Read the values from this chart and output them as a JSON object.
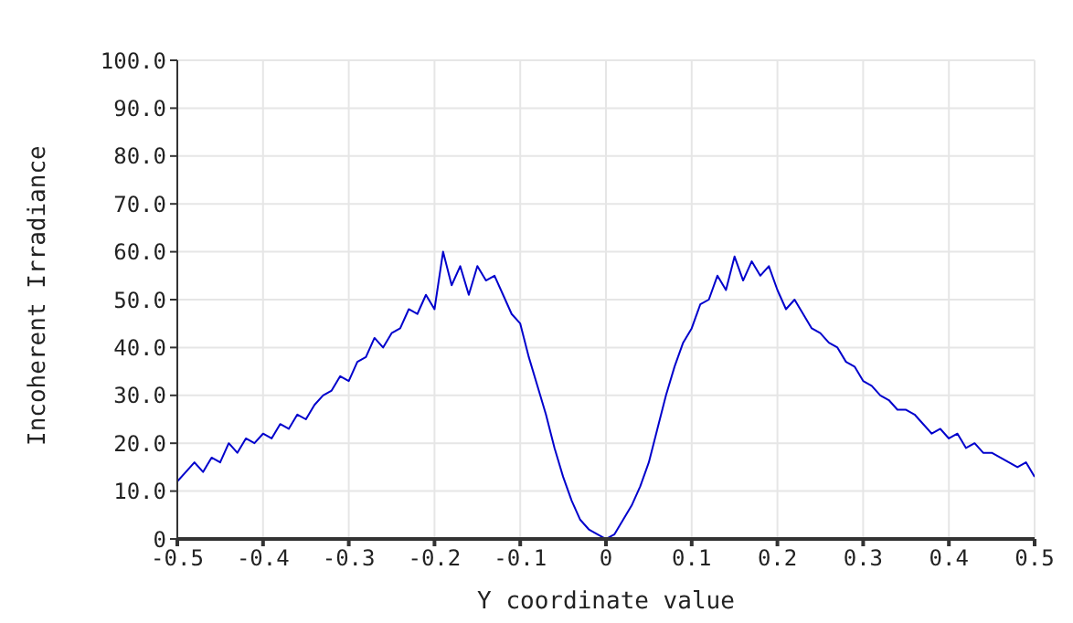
{
  "chart_data": {
    "type": "line",
    "xlabel": "Y coordinate value",
    "ylabel": "Incoherent Irradiance",
    "x": [
      -0.5,
      -0.49,
      -0.48,
      -0.47,
      -0.46,
      -0.45,
      -0.44,
      -0.43,
      -0.42,
      -0.41,
      -0.4,
      -0.39,
      -0.38,
      -0.37,
      -0.36,
      -0.35,
      -0.34,
      -0.33,
      -0.32,
      -0.31,
      -0.3,
      -0.29,
      -0.28,
      -0.27,
      -0.26,
      -0.25,
      -0.24,
      -0.23,
      -0.22,
      -0.21,
      -0.2,
      -0.19,
      -0.18,
      -0.17,
      -0.16,
      -0.15,
      -0.14,
      -0.13,
      -0.12,
      -0.11,
      -0.1,
      -0.09,
      -0.08,
      -0.07,
      -0.06,
      -0.05,
      -0.04,
      -0.03,
      -0.02,
      -0.01,
      0,
      0.01,
      0.02,
      0.03,
      0.04,
      0.05,
      0.06,
      0.07,
      0.08,
      0.09,
      0.1,
      0.11,
      0.12,
      0.13,
      0.14,
      0.15,
      0.16,
      0.17,
      0.18,
      0.19,
      0.2,
      0.21,
      0.22,
      0.23,
      0.24,
      0.25,
      0.26,
      0.27,
      0.28,
      0.29,
      0.3,
      0.31,
      0.32,
      0.33,
      0.34,
      0.35,
      0.36,
      0.37,
      0.38,
      0.39,
      0.4,
      0.41,
      0.42,
      0.43,
      0.44,
      0.45,
      0.46,
      0.47,
      0.48,
      0.49,
      0.5
    ],
    "series": [
      {
        "color": "#0000cc",
        "values": [
          12,
          14,
          16,
          14,
          17,
          16,
          20,
          18,
          21,
          20,
          22,
          21,
          24,
          23,
          26,
          25,
          28,
          30,
          31,
          34,
          33,
          37,
          38,
          42,
          40,
          43,
          44,
          48,
          47,
          51,
          48,
          60,
          53,
          57,
          51,
          57,
          54,
          55,
          51,
          47,
          45,
          38,
          32,
          26,
          19,
          13,
          8,
          4,
          2,
          1,
          0,
          1,
          4,
          7,
          11,
          16,
          23,
          30,
          36,
          41,
          44,
          49,
          50,
          55,
          52,
          59,
          54,
          58,
          55,
          57,
          52,
          48,
          50,
          47,
          44,
          43,
          41,
          40,
          37,
          36,
          33,
          32,
          30,
          29,
          27,
          27,
          26,
          24,
          22,
          23,
          21,
          22,
          19,
          20,
          18,
          18,
          17,
          16,
          15,
          16,
          13
        ]
      }
    ],
    "xlim": [
      -0.5,
      0.5
    ],
    "xticks": [
      -0.5,
      -0.4,
      -0.3,
      -0.2,
      -0.1,
      0,
      0.1,
      0.2,
      0.3,
      0.4,
      0.5
    ],
    "ylim": [
      0,
      100
    ],
    "yticks": [
      0,
      {
        "value": 10,
        "label": "10.0"
      },
      {
        "value": 20,
        "label": "20.0"
      },
      {
        "value": 30,
        "label": "30.0"
      },
      {
        "value": 40,
        "label": "40.0"
      },
      {
        "value": 50,
        "label": "50.0"
      },
      {
        "value": 60,
        "label": "60.0"
      },
      {
        "value": 70,
        "label": "70.0"
      },
      {
        "value": 80,
        "label": "80.0"
      },
      {
        "value": 90,
        "label": "90.0"
      },
      {
        "value": 100,
        "label": "100.0"
      }
    ],
    "grid": true,
    "legend": false,
    "marker": "none",
    "line_style": "solid"
  }
}
